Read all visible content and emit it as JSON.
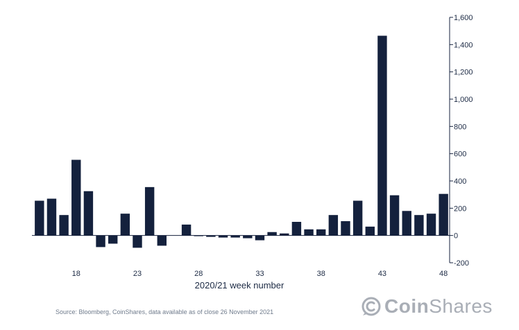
{
  "chart_data": {
    "type": "bar",
    "xlabel": "2020/21 week number",
    "ylabel": "",
    "x": [
      15,
      16,
      17,
      18,
      19,
      20,
      21,
      22,
      23,
      24,
      25,
      26,
      27,
      28,
      29,
      30,
      31,
      32,
      33,
      34,
      35,
      36,
      37,
      38,
      39,
      40,
      41,
      42,
      43,
      44,
      45,
      46,
      47,
      48
    ],
    "x_tick_labels": [
      "18",
      "23",
      "28",
      "33",
      "38",
      "43",
      "48"
    ],
    "x_tick_values": [
      18,
      23,
      28,
      33,
      38,
      43,
      48
    ],
    "values": [
      255,
      270,
      150,
      555,
      325,
      -85,
      -60,
      160,
      -90,
      355,
      -75,
      0,
      80,
      -5,
      -10,
      -15,
      -15,
      -20,
      -35,
      25,
      15,
      100,
      45,
      45,
      150,
      105,
      255,
      65,
      1465,
      295,
      180,
      150,
      160,
      305
    ],
    "ylim": [
      -200,
      1600
    ],
    "y_ticks": [
      -200,
      0,
      200,
      400,
      600,
      800,
      1000,
      1200,
      1400,
      1600
    ],
    "y_tick_labels": [
      "-200",
      "0",
      "200",
      "400",
      "600",
      "800",
      "1,000",
      "1,200",
      "1,400",
      "1,600"
    ],
    "bar_color": "#14213d",
    "axis_color": "#14213d",
    "grid": false,
    "y_axis_side": "right"
  },
  "footer": {
    "source": "Source: Bloomberg, CoinShares, data available as of close 26 November 2021"
  },
  "logo": {
    "text_bold": "Coin",
    "text_regular": "Shares",
    "icon": "coin-c-icon",
    "color": "#a9aeb6"
  }
}
